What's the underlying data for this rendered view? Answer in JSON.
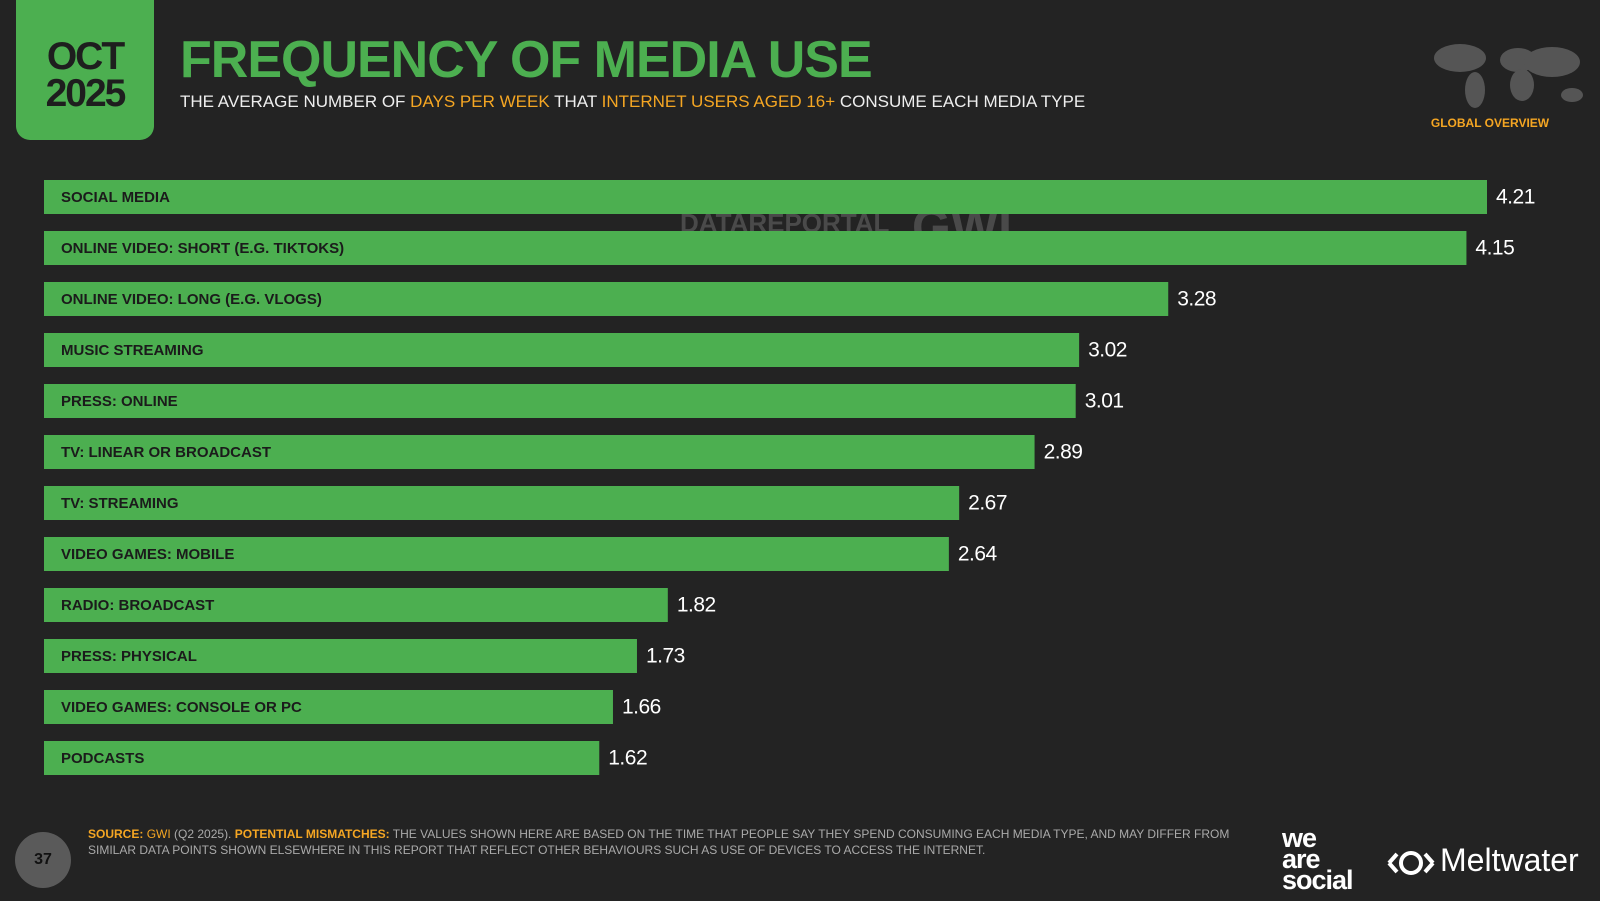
{
  "date": {
    "month": "OCT",
    "year": "2025"
  },
  "region": "GLOBAL OVERVIEW",
  "watermark": [
    "DATAREPORTAL",
    "GWI."
  ],
  "chart_data": {
    "type": "bar",
    "orientation": "horizontal",
    "title": "FREQUENCY OF MEDIA USE",
    "subtitle": [
      "THE AVERAGE NUMBER OF ",
      "DAYS PER WEEK",
      " THAT ",
      "INTERNET USERS AGED 16+",
      " CONSUME EACH MEDIA TYPE"
    ],
    "categories": [
      "SOCIAL MEDIA",
      "ONLINE VIDEO: SHORT (E.G. TIKTOKS)",
      "ONLINE VIDEO: LONG (E.G. VLOGS)",
      "MUSIC STREAMING",
      "PRESS: ONLINE",
      "TV: LINEAR OR BROADCAST",
      "TV: STREAMING",
      "VIDEO GAMES: MOBILE",
      "RADIO: BROADCAST",
      "PRESS: PHYSICAL",
      "VIDEO GAMES: CONSOLE OR PC",
      "PODCASTS"
    ],
    "values": [
      4.21,
      4.15,
      3.28,
      3.02,
      3.01,
      2.89,
      2.67,
      2.64,
      1.82,
      1.73,
      1.66,
      1.62
    ],
    "color": "#4caf50"
  },
  "footer": {
    "page": "37",
    "source_label": "SOURCE:",
    "source": "GWI",
    "source_date": "(Q2 2025).",
    "mismatch_label": "POTENTIAL MISMATCHES:",
    "mismatch_text": "THE VALUES SHOWN HERE ARE BASED ON THE TIME THAT PEOPLE SAY THEY SPEND CONSUMING EACH MEDIA TYPE, AND MAY DIFFER FROM SIMILAR DATA POINTS SHOWN ELSEWHERE IN THIS REPORT THAT REFLECT OTHER BEHAVIOURS SUCH AS USE OF DEVICES TO ACCESS THE INTERNET.",
    "brands": [
      "we",
      "are",
      "social",
      "Meltwater"
    ]
  }
}
